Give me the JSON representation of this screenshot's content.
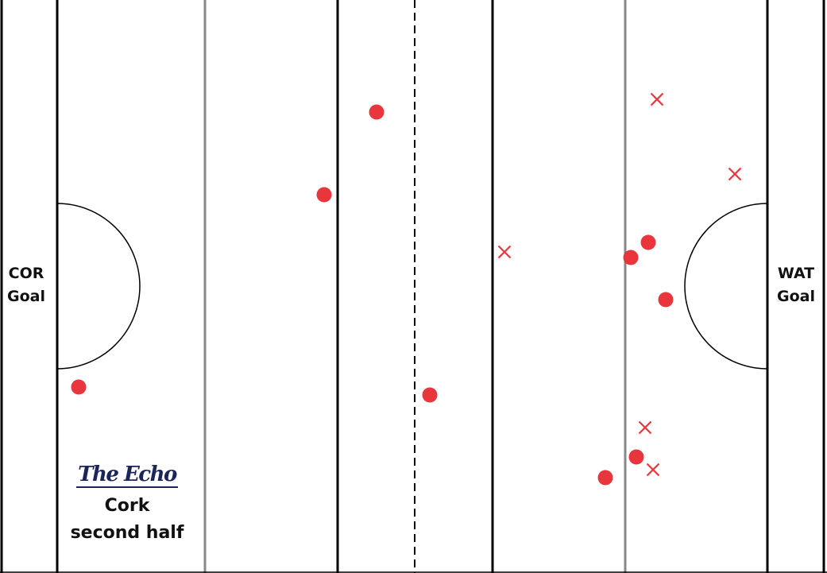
{
  "labels": {
    "left_goal": [
      "COR",
      "Goal"
    ],
    "right_goal": [
      "WAT",
      "Goal"
    ],
    "brand": "The Echo",
    "caption": [
      "Cork",
      "second half"
    ]
  },
  "colors": {
    "marker": "#e8363c",
    "line": "#000000",
    "gridline": "#888888",
    "brand": "#1b2559"
  },
  "legend_semantics": {
    "dot": "point",
    "cross": "wide"
  },
  "markers": [
    {
      "type": "dot"
    },
    {
      "type": "dot"
    },
    {
      "type": "dot"
    },
    {
      "type": "dot"
    },
    {
      "type": "dot"
    },
    {
      "type": "dot"
    },
    {
      "type": "dot"
    },
    {
      "type": "dot"
    },
    {
      "type": "dot"
    },
    {
      "type": "dot"
    },
    {
      "type": "cross"
    },
    {
      "type": "cross"
    },
    {
      "type": "cross"
    },
    {
      "type": "cross"
    },
    {
      "type": "cross"
    }
  ]
}
